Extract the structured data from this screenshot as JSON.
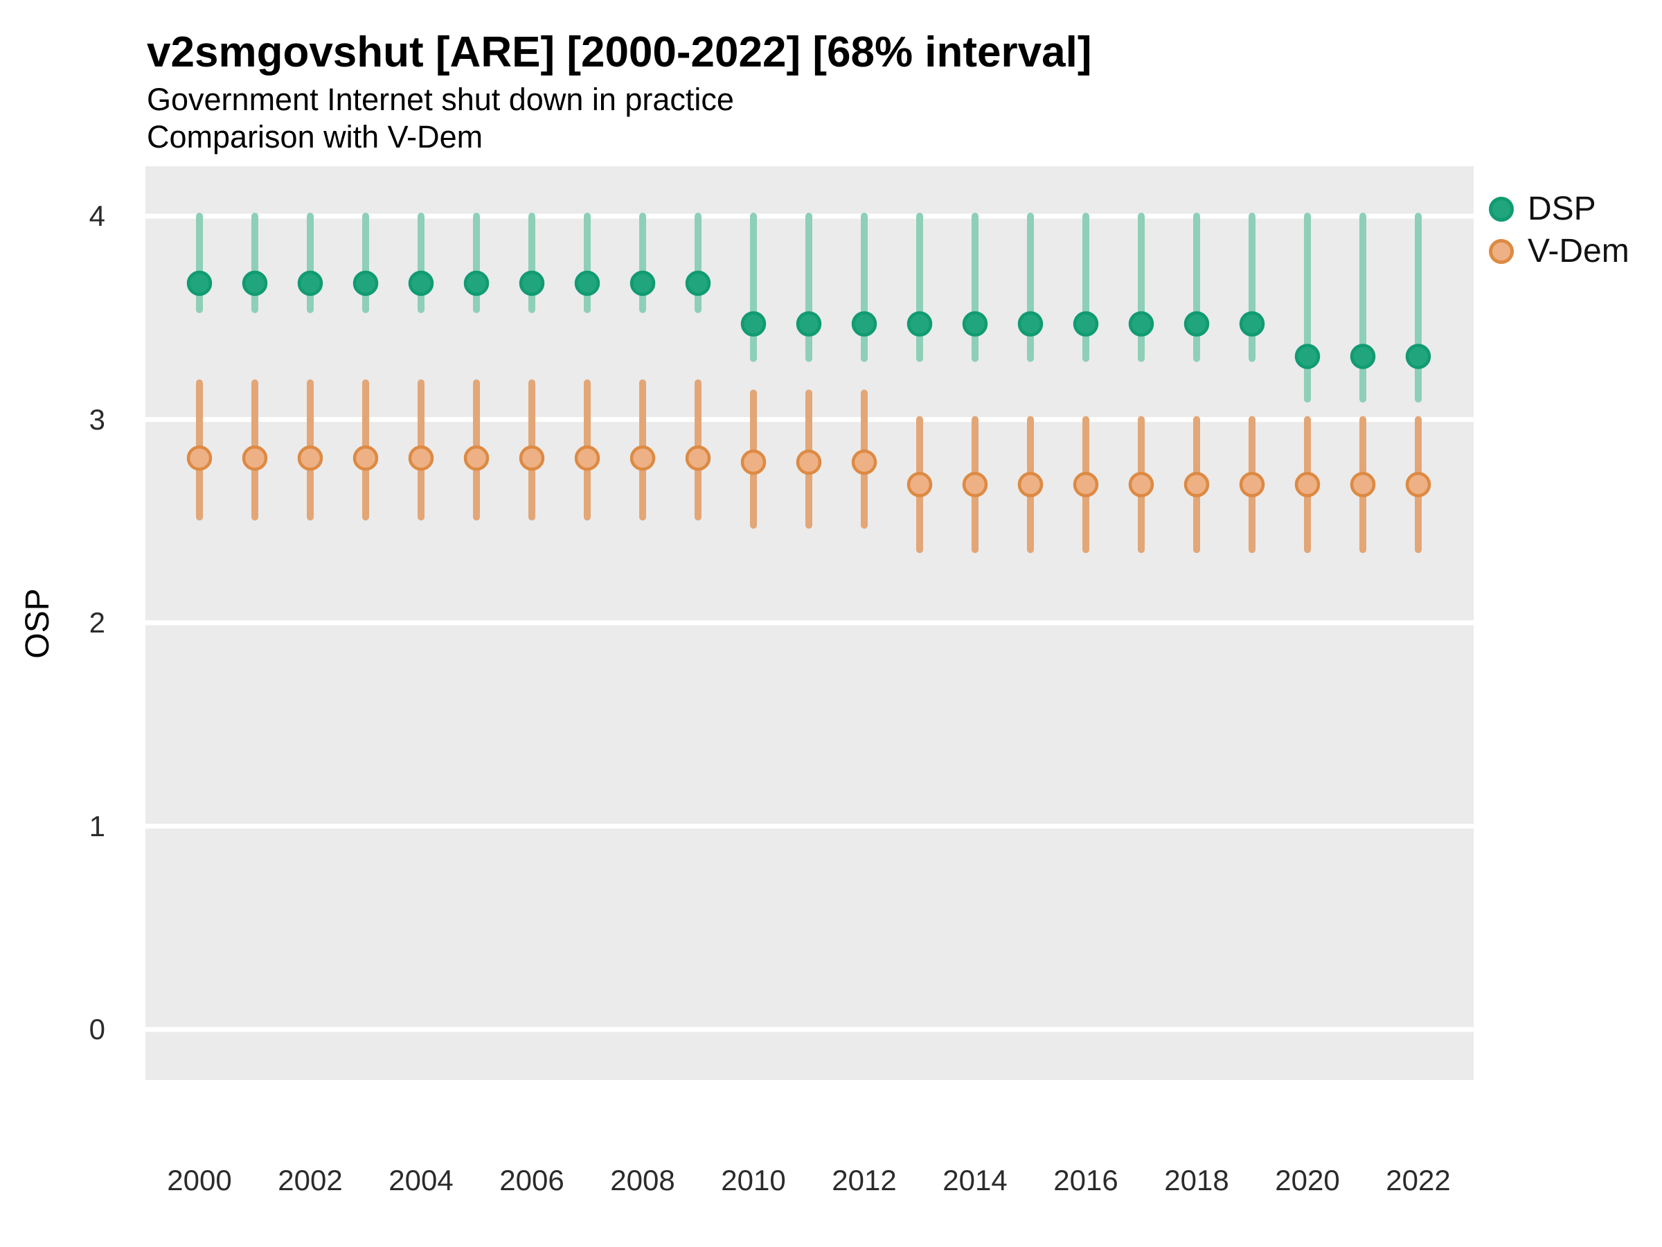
{
  "header": {
    "title": "v2smgovshut [ARE] [2000-2022] [68% interval]",
    "subtitle": "Government Internet shut down in practice",
    "subtitle2": "Comparison with V-Dem"
  },
  "colors": {
    "page_background": "#ffffff",
    "panel_background": "#ebebeb",
    "gridline": "#ffffff",
    "axis_text": "#2b2b2b",
    "title_text": "#000000"
  },
  "legend": {
    "position": "right",
    "items": [
      {
        "label": "DSP"
      },
      {
        "label": "V-Dem"
      }
    ]
  },
  "chart_data": {
    "type": "scatter",
    "title": "v2smgovshut [ARE] [2000-2022] [68% interval]",
    "subtitle": "Government Internet shut down in practice",
    "comparison_note": "Comparison with V-Dem",
    "interval_label": "68% interval",
    "xlabel": "",
    "ylabel": "OSP",
    "xlim": [
      1999,
      2023
    ],
    "ylim": [
      -0.25,
      4.25
    ],
    "grid": true,
    "legend_position": "right",
    "x": [
      2000,
      2001,
      2002,
      2003,
      2004,
      2005,
      2006,
      2007,
      2008,
      2009,
      2010,
      2011,
      2012,
      2013,
      2014,
      2015,
      2016,
      2017,
      2018,
      2019,
      2020,
      2021,
      2022
    ],
    "xtick_labels": [
      "2000",
      "2002",
      "2004",
      "2006",
      "2008",
      "2010",
      "2012",
      "2014",
      "2016",
      "2018",
      "2020",
      "2022"
    ],
    "xticks": [
      2000,
      2002,
      2004,
      2006,
      2008,
      2010,
      2012,
      2014,
      2016,
      2018,
      2020,
      2022
    ],
    "ytick_labels": [
      "0",
      "1",
      "2",
      "3",
      "4"
    ],
    "yticks": [
      0,
      1,
      2,
      3,
      4
    ],
    "series": [
      {
        "name": "DSP",
        "point_fill": "#20a57d",
        "point_stroke": "#119b71",
        "interval_color": "#8ecfb7",
        "values": [
          3.67,
          3.67,
          3.67,
          3.67,
          3.67,
          3.67,
          3.67,
          3.67,
          3.67,
          3.67,
          3.47,
          3.47,
          3.47,
          3.47,
          3.47,
          3.47,
          3.47,
          3.47,
          3.47,
          3.47,
          3.31,
          3.31,
          3.31
        ],
        "lower": [
          3.54,
          3.54,
          3.54,
          3.54,
          3.54,
          3.54,
          3.54,
          3.54,
          3.54,
          3.54,
          3.3,
          3.3,
          3.3,
          3.3,
          3.3,
          3.3,
          3.3,
          3.3,
          3.3,
          3.3,
          3.1,
          3.1,
          3.1
        ],
        "upper": [
          4.0,
          4.0,
          4.0,
          4.0,
          4.0,
          4.0,
          4.0,
          4.0,
          4.0,
          4.0,
          4.0,
          4.0,
          4.0,
          4.0,
          4.0,
          4.0,
          4.0,
          4.0,
          4.0,
          4.0,
          4.0,
          4.0,
          4.0
        ]
      },
      {
        "name": "V-Dem",
        "point_fill": "#eeb185",
        "point_stroke": "#dd8a43",
        "interval_color": "#e3a677",
        "values": [
          2.81,
          2.81,
          2.81,
          2.81,
          2.81,
          2.81,
          2.81,
          2.81,
          2.81,
          2.81,
          2.79,
          2.79,
          2.79,
          2.68,
          2.68,
          2.68,
          2.68,
          2.68,
          2.68,
          2.68,
          2.68,
          2.68,
          2.68
        ],
        "lower": [
          2.52,
          2.52,
          2.52,
          2.52,
          2.52,
          2.52,
          2.52,
          2.52,
          2.52,
          2.52,
          2.48,
          2.48,
          2.48,
          2.36,
          2.36,
          2.36,
          2.36,
          2.36,
          2.36,
          2.36,
          2.36,
          2.36,
          2.36
        ],
        "upper": [
          3.18,
          3.18,
          3.18,
          3.18,
          3.18,
          3.18,
          3.18,
          3.18,
          3.18,
          3.18,
          3.13,
          3.13,
          3.13,
          3.0,
          3.0,
          3.0,
          3.0,
          3.0,
          3.0,
          3.0,
          3.0,
          3.0,
          3.0
        ]
      }
    ]
  }
}
